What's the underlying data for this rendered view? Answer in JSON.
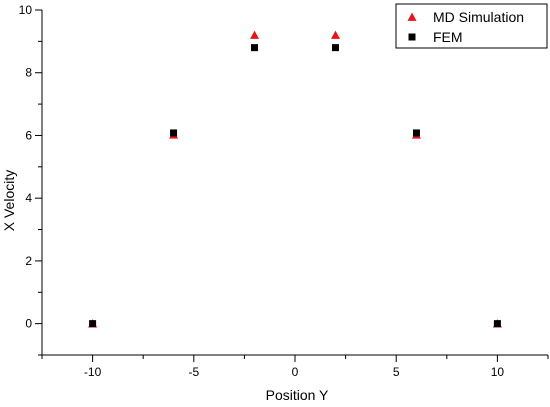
{
  "chart_data": {
    "type": "scatter",
    "title": "",
    "xlabel": "Position Y",
    "ylabel": "X Velocity",
    "xlim": [
      -12.5,
      12.5
    ],
    "ylim": [
      -1,
      10
    ],
    "xticks": [
      -10,
      -5,
      0,
      5,
      10
    ],
    "yticks": [
      0,
      2,
      4,
      6,
      8,
      10
    ],
    "grid": false,
    "legend_position": "top-right",
    "series": [
      {
        "name": "MD Simulation",
        "marker": "triangle",
        "color": "#e8141b",
        "x": [
          -10,
          -6,
          -2,
          2,
          6,
          10
        ],
        "y": [
          0,
          6.02,
          9.2,
          9.2,
          6.02,
          0
        ]
      },
      {
        "name": "FEM",
        "marker": "square",
        "color": "#000000",
        "x": [
          -10,
          -6,
          -2,
          2,
          6,
          10
        ],
        "y": [
          0,
          6.08,
          8.8,
          8.8,
          6.08,
          0
        ]
      }
    ]
  }
}
